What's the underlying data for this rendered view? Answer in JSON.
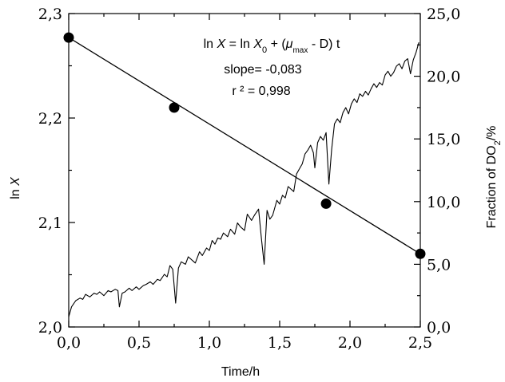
{
  "chart_data": {
    "type": "scatter",
    "title": "",
    "xlabel": "Time/h",
    "ylabel_left_prefix": "ln ",
    "ylabel_left_var": "X",
    "ylabel_right_prefix": "Fraction of DO",
    "ylabel_right_sub": "2",
    "ylabel_right_suffix": "/%",
    "xlim": [
      0,
      2.5
    ],
    "ylim_left": [
      2.0,
      2.3
    ],
    "ylim_right": [
      0,
      25
    ],
    "x_ticks": [
      "0,0",
      "0,5",
      "1,0",
      "1,5",
      "2,0",
      "2,5"
    ],
    "x_tick_values": [
      0,
      0.5,
      1.0,
      1.5,
      2.0,
      2.5
    ],
    "y_left_ticks": [
      "2,0",
      "2,1",
      "2,2",
      "2,3"
    ],
    "y_left_tick_values": [
      2.0,
      2.1,
      2.2,
      2.3
    ],
    "y_right_ticks": [
      "0,0",
      "5,0",
      "10,0",
      "15,0",
      "20,0",
      "25,0"
    ],
    "y_right_tick_values": [
      0,
      5,
      10,
      15,
      20,
      25
    ],
    "annotations": {
      "equation": {
        "ln": "ln ",
        "X": "X",
        "eq": " = ln ",
        "X0": "X",
        "sub0": "0",
        "plus": " + (",
        "mu": "μ",
        "max": "max",
        "rest": " - D) t"
      },
      "slope": "slope= -0,083",
      "r2": "r ² = 0,998"
    },
    "series": [
      {
        "axis": "left",
        "kind": "points",
        "x": [
          0.0,
          0.75,
          1.83,
          2.5
        ],
        "y": [
          2.277,
          2.21,
          2.118,
          2.07
        ]
      },
      {
        "axis": "left",
        "kind": "fit",
        "x": [
          0.0,
          2.5
        ],
        "y": [
          2.277,
          2.07
        ]
      },
      {
        "axis": "right",
        "kind": "line",
        "x": [
          0.0,
          0.02,
          0.05,
          0.08,
          0.1,
          0.12,
          0.15,
          0.18,
          0.2,
          0.22,
          0.25,
          0.28,
          0.3,
          0.33,
          0.35,
          0.36,
          0.38,
          0.4,
          0.43,
          0.45,
          0.48,
          0.5,
          0.53,
          0.55,
          0.58,
          0.6,
          0.63,
          0.65,
          0.68,
          0.7,
          0.72,
          0.74,
          0.76,
          0.78,
          0.8,
          0.83,
          0.85,
          0.88,
          0.9,
          0.93,
          0.95,
          0.98,
          1.0,
          1.02,
          1.04,
          1.06,
          1.08,
          1.1,
          1.13,
          1.15,
          1.18,
          1.2,
          1.22,
          1.25,
          1.27,
          1.3,
          1.32,
          1.35,
          1.37,
          1.39,
          1.41,
          1.43,
          1.45,
          1.48,
          1.5,
          1.52,
          1.54,
          1.56,
          1.58,
          1.6,
          1.62,
          1.64,
          1.66,
          1.68,
          1.7,
          1.72,
          1.74,
          1.75,
          1.77,
          1.79,
          1.81,
          1.83,
          1.85,
          1.87,
          1.89,
          1.91,
          1.93,
          1.95,
          1.97,
          1.99,
          2.01,
          2.03,
          2.05,
          2.07,
          2.09,
          2.11,
          2.13,
          2.15,
          2.17,
          2.19,
          2.21,
          2.23,
          2.25,
          2.27,
          2.29,
          2.31,
          2.33,
          2.35,
          2.37,
          2.39,
          2.41,
          2.43,
          2.45,
          2.47,
          2.49
        ],
        "y": [
          0.8,
          1.6,
          2.1,
          2.3,
          2.2,
          2.6,
          2.4,
          2.7,
          2.6,
          2.8,
          2.5,
          2.9,
          2.8,
          3.0,
          2.9,
          1.6,
          2.7,
          2.8,
          3.1,
          2.9,
          3.2,
          3.0,
          3.3,
          3.4,
          3.6,
          3.4,
          3.8,
          3.7,
          4.2,
          4.0,
          4.9,
          4.6,
          1.9,
          4.7,
          5.2,
          5.0,
          5.6,
          5.3,
          5.1,
          6.0,
          5.7,
          6.3,
          6.1,
          6.9,
          6.6,
          7.1,
          7.0,
          7.5,
          7.2,
          7.8,
          7.4,
          8.3,
          8.0,
          7.7,
          9.0,
          8.5,
          8.9,
          9.4,
          7.1,
          5.0,
          9.3,
          8.6,
          8.9,
          10.1,
          9.8,
          10.5,
          10.3,
          11.2,
          11.0,
          10.8,
          12.2,
          12.6,
          13.0,
          13.8,
          14.1,
          14.5,
          13.9,
          12.7,
          14.7,
          15.2,
          14.9,
          15.5,
          11.4,
          14.2,
          16.2,
          16.6,
          16.3,
          17.1,
          17.5,
          17.0,
          17.8,
          18.2,
          17.9,
          18.6,
          18.4,
          18.8,
          18.5,
          19.0,
          19.4,
          19.1,
          19.5,
          19.3,
          20.1,
          20.4,
          20.0,
          20.3,
          20.8,
          21.0,
          20.6,
          21.2,
          21.4,
          20.2,
          21.3,
          21.9,
          22.7
        ]
      }
    ]
  }
}
